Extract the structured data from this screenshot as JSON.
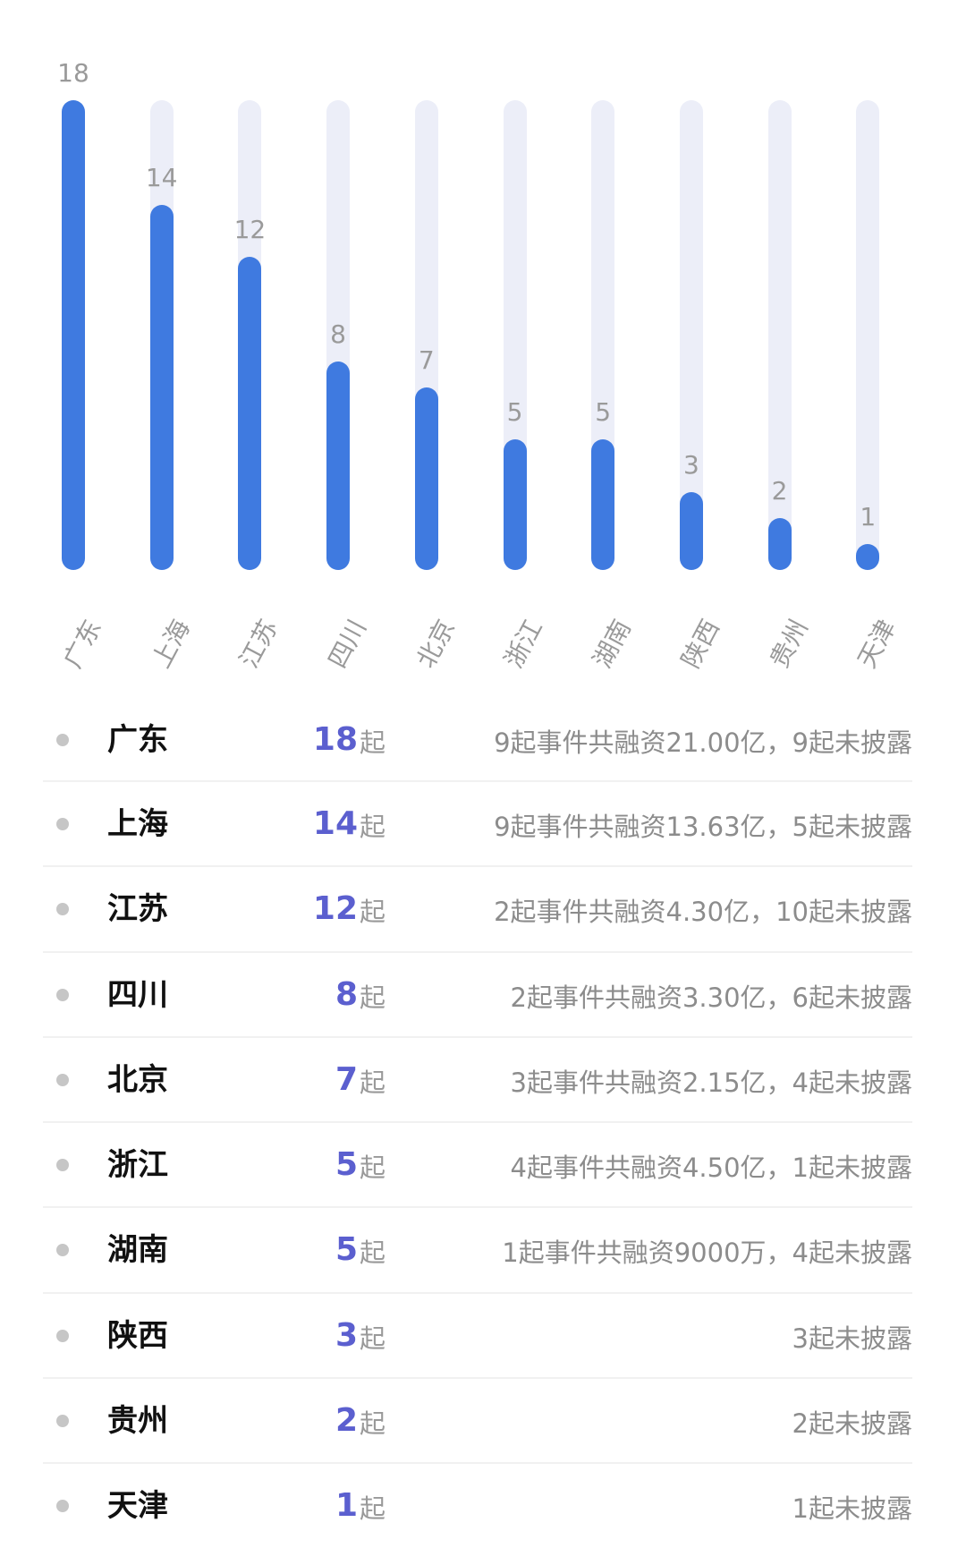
{
  "chart_data": {
    "type": "bar",
    "title": "",
    "xlabel": "",
    "ylabel": "",
    "categories": [
      "广东",
      "上海",
      "江苏",
      "四川",
      "北京",
      "浙江",
      "湖南",
      "陕西",
      "贵州",
      "天津"
    ],
    "values": [
      18,
      14,
      12,
      8,
      7,
      5,
      5,
      3,
      2,
      1
    ],
    "ylim": [
      0,
      18
    ],
    "grid": false,
    "legend": null,
    "colors": {
      "bar": "#3f7ae0",
      "track": "#eceef8",
      "label": "#9a9a9a"
    }
  },
  "list": {
    "unit": "起",
    "colors": {
      "count": "#5b5fcf",
      "name": "#111111",
      "desc": "#8c8c8c"
    },
    "rows": [
      {
        "name": "广东",
        "count": "18",
        "desc": "9起事件共融资21.00亿，9起未披露"
      },
      {
        "name": "上海",
        "count": "14",
        "desc": "9起事件共融资13.63亿，5起未披露"
      },
      {
        "name": "江苏",
        "count": "12",
        "desc": "2起事件共融资4.30亿，10起未披露"
      },
      {
        "name": "四川",
        "count": "8",
        "desc": "2起事件共融资3.30亿，6起未披露"
      },
      {
        "name": "北京",
        "count": "7",
        "desc": "3起事件共融资2.15亿，4起未披露"
      },
      {
        "name": "浙江",
        "count": "5",
        "desc": "4起事件共融资4.50亿，1起未披露"
      },
      {
        "name": "湖南",
        "count": "5",
        "desc": "1起事件共融资9000万，4起未披露"
      },
      {
        "name": "陕西",
        "count": "3",
        "desc": "3起未披露"
      },
      {
        "name": "贵州",
        "count": "2",
        "desc": "2起未披露"
      },
      {
        "name": "天津",
        "count": "1",
        "desc": "1起未披露"
      }
    ]
  }
}
